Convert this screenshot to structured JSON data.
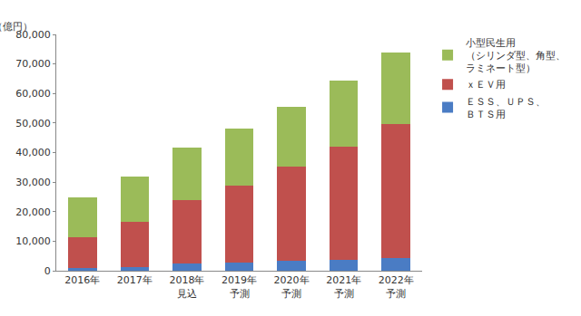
{
  "chart_data": {
    "type": "bar",
    "stacked": true,
    "y_label": "（億円）",
    "categories": [
      "2016年",
      "2017年",
      "2018年\n見込",
      "2019年\n予測",
      "2020年\n予測",
      "2021年\n予測",
      "2022年\n予測"
    ],
    "series": [
      {
        "name": "ＥＳＳ、ＵＰＳ、\nＢＴＳ用",
        "color": "#4a7cc4",
        "values": [
          800,
          1200,
          2400,
          2800,
          3300,
          3700,
          4300
        ]
      },
      {
        "name": "ｘＥＶ用",
        "color": "#c0504d",
        "values": [
          10500,
          15300,
          21600,
          26000,
          32000,
          38300,
          45500
        ]
      },
      {
        "name": "小型民生用\n（シリンダ型、角型、\nラミネート型）",
        "color": "#9bbb59",
        "values": [
          13500,
          15300,
          17700,
          19200,
          20300,
          22500,
          24200
        ]
      }
    ],
    "ylim": [
      0,
      80000
    ],
    "yticks": [
      0,
      {
        "value": 10000,
        "label": "10,000"
      },
      {
        "value": 20000,
        "label": "20,000"
      },
      {
        "value": 30000,
        "label": "30,000"
      },
      {
        "value": 40000,
        "label": "40,000"
      },
      {
        "value": 50000,
        "label": "50,000"
      },
      {
        "value": 60000,
        "label": "60,000"
      },
      {
        "value": 70000,
        "label": "70,000"
      },
      {
        "value": 80000,
        "label": "80,000"
      }
    ],
    "grid": false,
    "legend": "right"
  }
}
